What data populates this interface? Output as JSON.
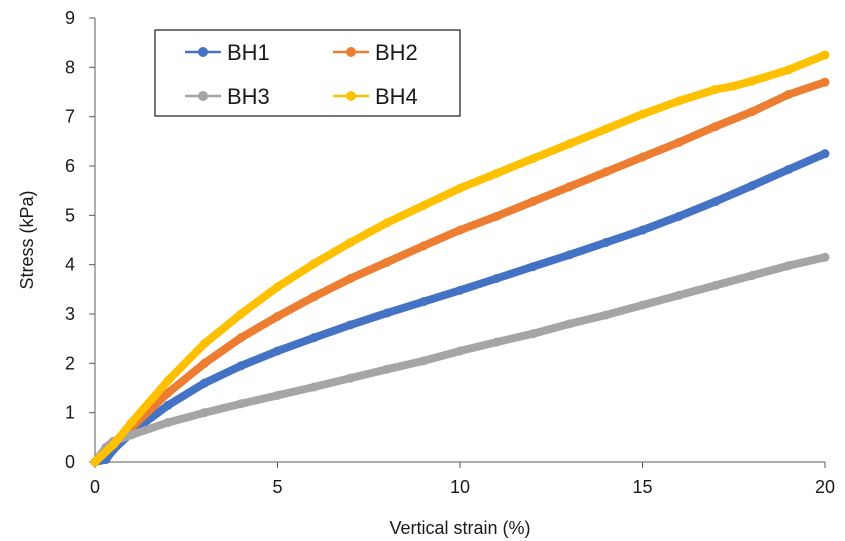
{
  "chart_data": {
    "type": "line",
    "title": "",
    "xlabel": "Vertical strain (%)",
    "ylabel": "Stress (kPa)",
    "xlim": [
      0,
      20
    ],
    "ylim": [
      0,
      9
    ],
    "x_ticks": [
      0,
      5,
      10,
      15,
      20
    ],
    "y_ticks": [
      0,
      1,
      2,
      3,
      4,
      5,
      6,
      7,
      8,
      9
    ],
    "grid": false,
    "legend_position": "top-left",
    "series": [
      {
        "name": "BH1",
        "color": "#4472C4",
        "x": [
          0,
          0.3,
          0.5,
          1,
          2,
          3,
          4,
          5,
          6,
          7,
          8,
          9,
          10,
          11,
          12,
          13,
          14,
          15,
          16,
          17,
          18,
          19,
          20
        ],
        "y": [
          0,
          0.05,
          0.25,
          0.6,
          1.15,
          1.6,
          1.95,
          2.25,
          2.52,
          2.78,
          3.02,
          3.25,
          3.48,
          3.72,
          3.96,
          4.2,
          4.45,
          4.7,
          4.98,
          5.28,
          5.6,
          5.93,
          6.25
        ]
      },
      {
        "name": "BH2",
        "color": "#ED7D31",
        "x": [
          0,
          0.5,
          1,
          2,
          3,
          4,
          5,
          6,
          7,
          8,
          9,
          10,
          11,
          12,
          13,
          14,
          15,
          16,
          17,
          18,
          19,
          20
        ],
        "y": [
          0,
          0.35,
          0.7,
          1.4,
          2.0,
          2.52,
          2.95,
          3.35,
          3.72,
          4.05,
          4.38,
          4.7,
          4.98,
          5.28,
          5.58,
          5.88,
          6.18,
          6.48,
          6.8,
          7.1,
          7.45,
          7.7
        ]
      },
      {
        "name": "BH3",
        "color": "#A5A5A5",
        "x": [
          0,
          0.3,
          0.5,
          1,
          2,
          3,
          4,
          5,
          6,
          7,
          8,
          9,
          10,
          11,
          12,
          13,
          14,
          15,
          16,
          17,
          18,
          19,
          20
        ],
        "y": [
          0,
          0.3,
          0.42,
          0.55,
          0.8,
          1.0,
          1.18,
          1.35,
          1.52,
          1.7,
          1.88,
          2.05,
          2.25,
          2.43,
          2.6,
          2.8,
          2.98,
          3.18,
          3.38,
          3.58,
          3.78,
          3.98,
          4.15
        ]
      },
      {
        "name": "BH4",
        "color": "#FFC000",
        "x": [
          0,
          0.5,
          1,
          2,
          3,
          4,
          5,
          6,
          7,
          8,
          9,
          10,
          11,
          12,
          13,
          14,
          15,
          16,
          17,
          17.5,
          18,
          19,
          20
        ],
        "y": [
          0,
          0.35,
          0.8,
          1.65,
          2.4,
          3.0,
          3.55,
          4.02,
          4.45,
          4.85,
          5.2,
          5.55,
          5.85,
          6.15,
          6.45,
          6.75,
          7.05,
          7.32,
          7.55,
          7.62,
          7.72,
          7.95,
          8.25
        ]
      }
    ]
  }
}
